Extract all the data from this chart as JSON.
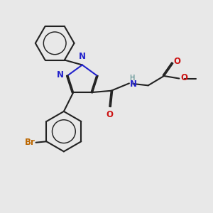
{
  "bg_color": "#e8e8e8",
  "bond_color": "#222222",
  "N_color": "#2222cc",
  "O_color": "#cc1111",
  "Br_color": "#bb6600",
  "H_color": "#337777",
  "lw": 1.5,
  "dbo": 0.055,
  "fs": 8.5,
  "fs_small": 7.0,
  "xlim": [
    0,
    10
  ],
  "ylim": [
    0,
    10
  ]
}
